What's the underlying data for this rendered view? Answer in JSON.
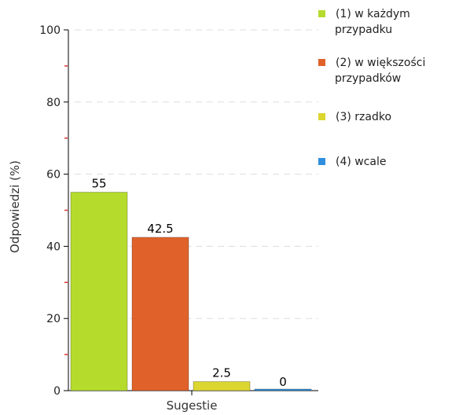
{
  "chart_data": {
    "type": "bar",
    "xlabel": "Sugestie",
    "ylabel": "Odpowiedzi (%)",
    "ylim": [
      0,
      100
    ],
    "yticks": [
      0,
      20,
      40,
      60,
      80,
      100
    ],
    "grid": true,
    "legend_position": "right",
    "series": [
      {
        "name": "(1) w każdym przypadku",
        "label_lines": [
          "(1) w każdym",
          "przypadku"
        ],
        "value": 55,
        "value_label": "55",
        "color": "#b5dc2d"
      },
      {
        "name": "(2) w większości przypadków",
        "label_lines": [
          "(2) w większości",
          "przypadków"
        ],
        "value": 42.5,
        "value_label": "42.5",
        "color": "#e0622a"
      },
      {
        "name": "(3) rzadko",
        "label_lines": [
          "(3) rzadko"
        ],
        "value": 2.5,
        "value_label": "2.5",
        "color": "#dcd630"
      },
      {
        "name": "(4) wcale",
        "label_lines": [
          "(4) wcale"
        ],
        "value": 0,
        "value_label": "0",
        "color": "#2f8fdc"
      }
    ]
  }
}
